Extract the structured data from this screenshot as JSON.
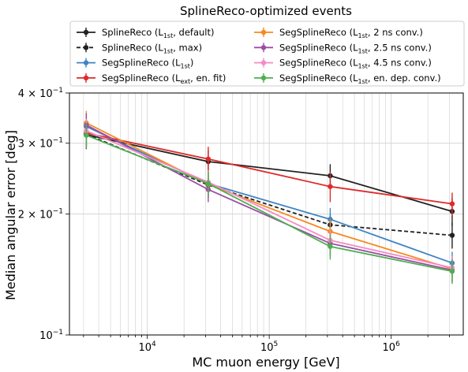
{
  "chart_data": {
    "type": "line",
    "title": "SplineReco-optimized events",
    "xlabel": "MC muon energy [GeV]",
    "ylabel": "Median angular error [deg]",
    "xscale": "log",
    "yscale": "log",
    "xlim": [
      2300,
      3900000
    ],
    "ylim": [
      0.1,
      0.4
    ],
    "grid": true,
    "legend_position": "top",
    "x": [
      3162,
      31623,
      316228,
      3162278
    ],
    "x_ticks": [
      {
        "value": 10000,
        "base": "10",
        "exp": "4"
      },
      {
        "value": 100000,
        "base": "10",
        "exp": "5"
      },
      {
        "value": 1000000,
        "base": "10",
        "exp": "6"
      }
    ],
    "y_ticks": [
      {
        "value": 0.1,
        "mant": "10",
        "exp": "−1"
      },
      {
        "value": 0.2,
        "mant": "2 × 10",
        "exp": "−1"
      },
      {
        "value": 0.3,
        "mant": "3 × 10",
        "exp": "−1"
      },
      {
        "value": 0.4,
        "mant": "4 × 10",
        "exp": "−1"
      }
    ],
    "series": [
      {
        "name": "SplineReco",
        "sub": "1st",
        "suffix": ", default)",
        "color": "#222222",
        "dash": "",
        "values": [
          0.315,
          0.27,
          0.249,
          0.203
        ],
        "errors": [
          0.025,
          0.018,
          0.017,
          0.016
        ]
      },
      {
        "name": "SplineReco",
        "sub": "1st",
        "suffix": ", max)",
        "color": "#222222",
        "dash": "5,3",
        "values": [
          0.316,
          0.236,
          0.188,
          0.177
        ],
        "errors": [
          0.022,
          0.016,
          0.012,
          0.013
        ]
      },
      {
        "name": "SegSplineReco",
        "sub": "1st",
        "suffix": ")",
        "color": "#3f86c2",
        "dash": "",
        "values": [
          0.33,
          0.238,
          0.194,
          0.151
        ],
        "errors": [
          0.022,
          0.016,
          0.013,
          0.01
        ]
      },
      {
        "name": "SegSplineReco",
        "sub": "ext",
        "suffix": ", en. fit)",
        "color": "#e02a2a",
        "dash": "",
        "values": [
          0.318,
          0.274,
          0.234,
          0.212
        ],
        "errors": [
          0.024,
          0.02,
          0.02,
          0.014
        ]
      },
      {
        "name": "SegSplineReco",
        "sub": "1st",
        "suffix": ", 2 ns conv.)",
        "color": "#f6891f",
        "dash": "",
        "values": [
          0.337,
          0.237,
          0.181,
          0.146
        ],
        "errors": [
          0.024,
          0.017,
          0.013,
          0.01
        ]
      },
      {
        "name": "SegSplineReco",
        "sub": "1st",
        "suffix": ", 2.5 ns conv.)",
        "color": "#9b4ea5",
        "dash": "",
        "values": [
          0.333,
          0.23,
          0.169,
          0.145
        ],
        "errors": [
          0.023,
          0.016,
          0.012,
          0.01
        ]
      },
      {
        "name": "SegSplineReco",
        "sub": "1st",
        "suffix": ", 4.5 ns conv.)",
        "color": "#f48cc4",
        "dash": "",
        "values": [
          0.322,
          0.24,
          0.172,
          0.147
        ],
        "errors": [
          0.023,
          0.017,
          0.012,
          0.01
        ]
      },
      {
        "name": "SegSplineReco",
        "sub": "1st",
        "suffix": ", en. dep. conv.)",
        "color": "#4caf50",
        "dash": "",
        "values": [
          0.314,
          0.238,
          0.166,
          0.144
        ],
        "errors": [
          0.023,
          0.017,
          0.012,
          0.01
        ]
      }
    ]
  }
}
